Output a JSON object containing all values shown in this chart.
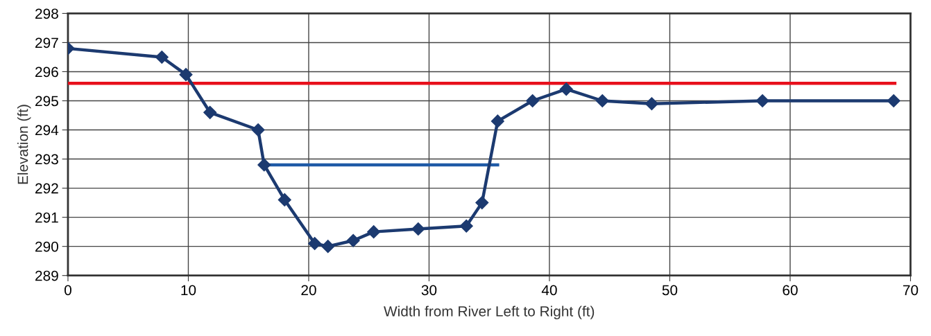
{
  "chart_data": {
    "type": "line",
    "xlabel": "Width from River Left to Right (ft)",
    "ylabel": "Elevation (ft)",
    "xlim": [
      0,
      70
    ],
    "xticks": [
      0,
      10,
      20,
      30,
      40,
      50,
      60,
      70
    ],
    "ylim": [
      289,
      298
    ],
    "yticks": [
      289,
      290,
      291,
      292,
      293,
      294,
      295,
      296,
      297,
      298
    ],
    "grid": true,
    "series": [
      {
        "color": "#e8101c",
        "marker": "none",
        "x": [
          0,
          68.7
        ],
        "values": [
          295.6,
          295.6
        ]
      },
      {
        "color": "#1f5aa6",
        "marker": "none",
        "x": [
          16.3,
          35.7
        ],
        "values": [
          292.8,
          292.8
        ]
      },
      {
        "color": "#1c3a70",
        "marker": "diamond",
        "x": [
          0,
          7.8,
          9.8,
          11.8,
          15.8,
          16.3,
          18.0,
          20.5,
          21.6,
          23.7,
          25.4,
          29.1,
          33.1,
          34.4,
          35.7,
          38.6,
          41.4,
          44.4,
          48.5,
          57.7,
          68.6
        ],
        "values": [
          296.8,
          296.5,
          295.9,
          294.6,
          294.0,
          292.8,
          291.6,
          290.1,
          290.0,
          290.2,
          290.5,
          290.6,
          290.7,
          291.5,
          294.3,
          295.0,
          295.4,
          295.0,
          294.9,
          295.0,
          295.0
        ]
      }
    ]
  }
}
